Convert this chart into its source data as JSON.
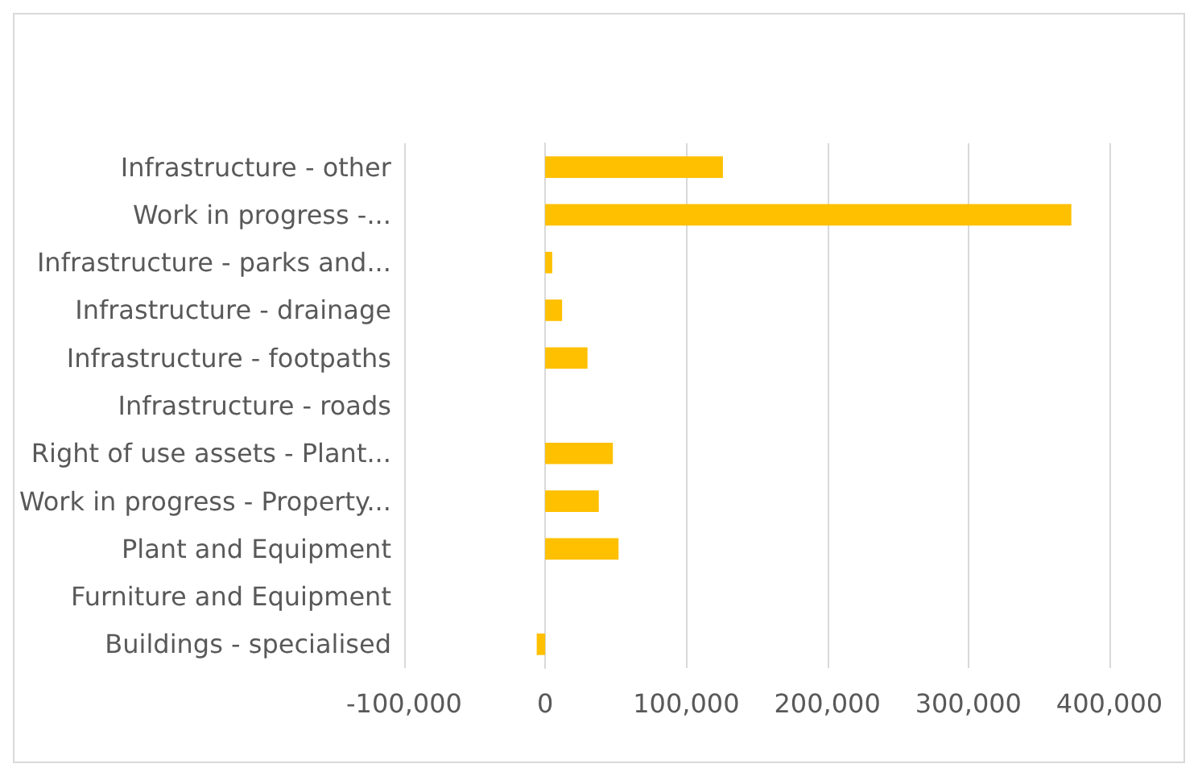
{
  "chart_data": {
    "type": "bar",
    "orientation": "horizontal",
    "categories": [
      "Infrastructure - other",
      "Work in progress -...",
      "Infrastructure - parks and...",
      "Infrastructure - drainage",
      "Infrastructure - footpaths",
      "Infrastructure - roads",
      "Right of use assets - Plant...",
      "Work in progress - Property...",
      "Plant and Equipment",
      "Furniture and Equipment",
      "Buildings - specialised"
    ],
    "values": [
      126000,
      373000,
      5000,
      12000,
      30000,
      0,
      48000,
      38000,
      52000,
      0,
      -6000
    ],
    "color": "#ffc000",
    "xlim": [
      -100000,
      400000
    ],
    "xticks": [
      {
        "value": -100000,
        "label": "-100,000"
      },
      0,
      {
        "value": 100000,
        "label": "100,000"
      },
      {
        "value": 200000,
        "label": "200,000"
      },
      {
        "value": 300000,
        "label": "300,000"
      },
      {
        "value": 400000,
        "label": "400,000"
      }
    ],
    "grid": "x"
  }
}
